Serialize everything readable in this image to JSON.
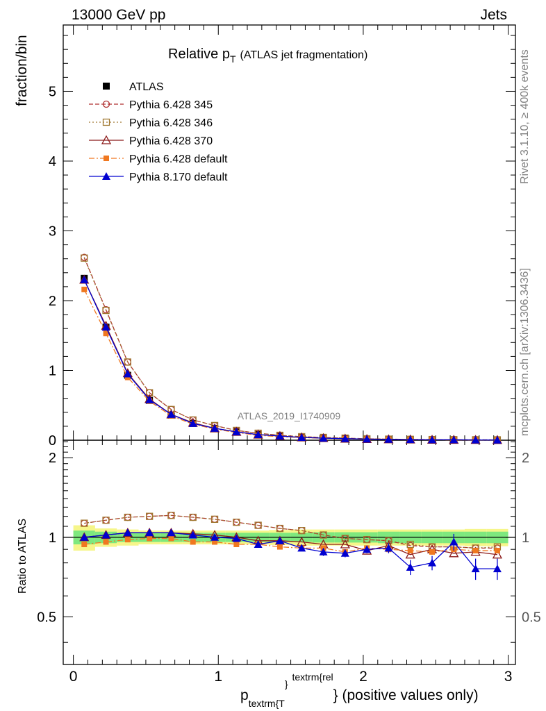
{
  "header": {
    "left": "13000 GeV pp",
    "right": "Jets"
  },
  "side": {
    "top": "Rivet 3.1.10, ≥ 400k events",
    "bottom": "mcplots.cern.ch [arXiv:1306.3436]"
  },
  "watermark": "ATLAS_2019_I1740909",
  "chart_data": {
    "type": "line",
    "title": "Relative p",
    "title_sub": "T",
    "title_note": "(ATLAS jet fragmentation)",
    "ylabel": "fraction/bin",
    "ratio_ylabel": "Ratio to ATLAS",
    "xlabel": {
      "main": "p",
      "sub": "textrm{T",
      "sup1": "}",
      "sup2": "textrm{rel",
      "close": "}",
      "tail": " (positive values only)"
    },
    "xlim": [
      -0.07,
      3.05
    ],
    "ylim": [
      0,
      5.95
    ],
    "ratio_ylim": [
      0.33,
      2.33
    ],
    "x_ticks": [
      "0",
      "1",
      "2",
      "3"
    ],
    "y_ticks": [
      "0",
      "1",
      "2",
      "3",
      "4",
      "5"
    ],
    "ratio_ticks": [
      "0.5",
      "1",
      "2"
    ],
    "legend_position": "top-left",
    "x": [
      0.075,
      0.225,
      0.375,
      0.525,
      0.675,
      0.825,
      0.975,
      1.125,
      1.275,
      1.425,
      1.575,
      1.725,
      1.875,
      2.025,
      2.175,
      2.325,
      2.475,
      2.625,
      2.775,
      2.925
    ],
    "series": [
      {
        "name": "ATLAS",
        "color": "#000000",
        "marker": "square-filled",
        "dash": "none",
        "values": [
          2.32,
          1.62,
          0.93,
          0.57,
          0.36,
          0.24,
          0.17,
          0.12,
          0.08,
          0.06,
          0.042,
          0.032,
          0.024,
          0.018,
          0.014,
          0.011,
          0.008,
          0.006,
          0.005,
          0.004
        ]
      },
      {
        "name": "Pythia 6.428 345",
        "color": "#b03030",
        "marker": "circle-open",
        "dash": "6,3",
        "values": [
          2.62,
          1.87,
          1.12,
          0.68,
          0.44,
          0.29,
          0.21,
          0.14,
          0.1,
          0.07,
          0.05,
          0.04,
          0.03,
          0.02,
          0.015,
          0.012,
          0.009,
          0.007,
          0.006,
          0.005
        ],
        "ratio": [
          1.13,
          1.16,
          1.19,
          1.2,
          1.21,
          1.19,
          1.17,
          1.14,
          1.11,
          1.08,
          1.06,
          1.02,
          0.99,
          0.98,
          0.97,
          0.93,
          0.92,
          0.92,
          0.91,
          0.91
        ]
      },
      {
        "name": "Pythia 6.428 346",
        "color": "#a07830",
        "marker": "square-open",
        "dash": "2,3",
        "values": [
          2.61,
          1.86,
          1.12,
          0.68,
          0.44,
          0.29,
          0.21,
          0.14,
          0.1,
          0.07,
          0.05,
          0.04,
          0.03,
          0.02,
          0.015,
          0.012,
          0.009,
          0.007,
          0.006,
          0.005
        ],
        "ratio": [
          1.13,
          1.16,
          1.19,
          1.2,
          1.21,
          1.19,
          1.17,
          1.14,
          1.11,
          1.08,
          1.06,
          1.02,
          0.99,
          0.98,
          0.97,
          0.94,
          0.92,
          0.92,
          0.91,
          0.92
        ]
      },
      {
        "name": "Pythia 6.428 370",
        "color": "#8b1a1a",
        "marker": "triangle-open",
        "dash": "none",
        "values": [
          2.3,
          1.64,
          0.96,
          0.59,
          0.37,
          0.25,
          0.17,
          0.12,
          0.08,
          0.06,
          0.04,
          0.03,
          0.022,
          0.016,
          0.013,
          0.01,
          0.007,
          0.005,
          0.004,
          0.003
        ],
        "ratio": [
          1.0,
          1.02,
          1.04,
          1.04,
          1.04,
          1.03,
          1.02,
          1.0,
          0.97,
          0.97,
          0.96,
          0.94,
          0.94,
          0.89,
          0.93,
          0.86,
          0.9,
          0.87,
          0.88,
          0.86
        ]
      },
      {
        "name": "Pythia 6.428 default",
        "color": "#f07820",
        "marker": "square-filled-small",
        "dash": "8,3,2,3",
        "values": [
          2.16,
          1.53,
          0.9,
          0.56,
          0.35,
          0.23,
          0.16,
          0.11,
          0.07,
          0.05,
          0.037,
          0.028,
          0.02,
          0.015,
          0.012,
          0.009,
          0.007,
          0.005,
          0.004,
          0.003
        ],
        "ratio": [
          0.94,
          0.96,
          0.98,
          0.99,
          0.99,
          0.96,
          0.96,
          0.94,
          0.94,
          0.92,
          0.91,
          0.91,
          0.88,
          0.91,
          0.9,
          0.89,
          0.88,
          0.9,
          0.89,
          0.89
        ]
      },
      {
        "name": "Pythia 8.170 default",
        "color": "#0000d0",
        "marker": "triangle-filled",
        "dash": "none",
        "values": [
          2.3,
          1.62,
          0.95,
          0.58,
          0.37,
          0.24,
          0.17,
          0.12,
          0.08,
          0.06,
          0.04,
          0.03,
          0.022,
          0.016,
          0.012,
          0.009,
          0.006,
          0.006,
          0.004,
          0.003
        ],
        "ratio": [
          1.0,
          1.02,
          1.04,
          1.04,
          1.04,
          1.02,
          1.0,
          0.99,
          0.94,
          0.97,
          0.91,
          0.88,
          0.87,
          0.9,
          0.91,
          0.77,
          0.8,
          0.96,
          0.76,
          0.76
        ],
        "ratio_err": [
          0.01,
          0.01,
          0.01,
          0.01,
          0.01,
          0.01,
          0.01,
          0.01,
          0.02,
          0.02,
          0.02,
          0.03,
          0.03,
          0.03,
          0.04,
          0.05,
          0.05,
          0.07,
          0.07,
          0.07
        ]
      }
    ],
    "ratio_band": {
      "inner": [
        0.06,
        0.05,
        0.04,
        0.04,
        0.04,
        0.04,
        0.04,
        0.04,
        0.04,
        0.04,
        0.04,
        0.045,
        0.045,
        0.045,
        0.05,
        0.05,
        0.05,
        0.05,
        0.05,
        0.05
      ],
      "outer": [
        0.11,
        0.08,
        0.07,
        0.06,
        0.06,
        0.06,
        0.06,
        0.06,
        0.06,
        0.065,
        0.07,
        0.07,
        0.07,
        0.07,
        0.07,
        0.07,
        0.07,
        0.07,
        0.075,
        0.075
      ],
      "inner_color": "#7ee87e",
      "outer_color": "#f6f68a"
    }
  }
}
